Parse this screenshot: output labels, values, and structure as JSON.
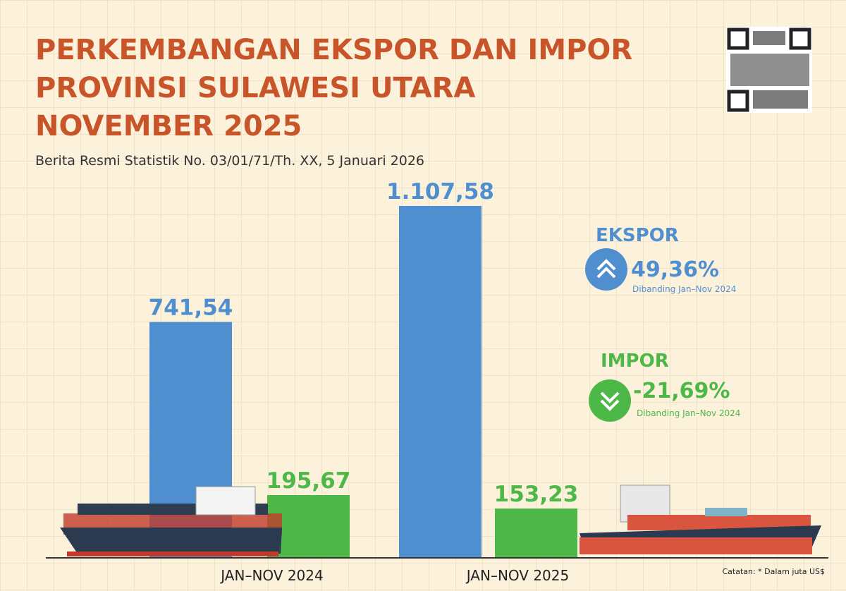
{
  "chart_data": {
    "type": "bar",
    "title": [
      "PERKEMBANGAN EKSPOR DAN IMPOR",
      "PROVINSI SULAWESI UTARA",
      "NOVEMBER 2025"
    ],
    "subtitle": "Berita Resmi Statistik No. 03/01/71/Th. XX, 5 Januari 2026",
    "categories": [
      "JAN–NOV 2024",
      "JAN–NOV 2025"
    ],
    "series": [
      {
        "name": "EKSPOR",
        "color": "#4f8fcf",
        "values": [
          741.54,
          1107.58
        ],
        "value_labels": [
          "741,54",
          "1.107,58"
        ]
      },
      {
        "name": "IMPOR",
        "color": "#4db848",
        "values": [
          195.67,
          153.23
        ],
        "value_labels": [
          "195,67",
          "153,23"
        ]
      }
    ],
    "annotations": [
      {
        "change": "49,36%",
        "note": "Dibanding Jan–Nov 2024"
      },
      {
        "change": "-21,69%",
        "note": "Dibanding Jan–Nov 2024"
      }
    ],
    "footnote": "Catatan: * Dalam juta US$"
  }
}
